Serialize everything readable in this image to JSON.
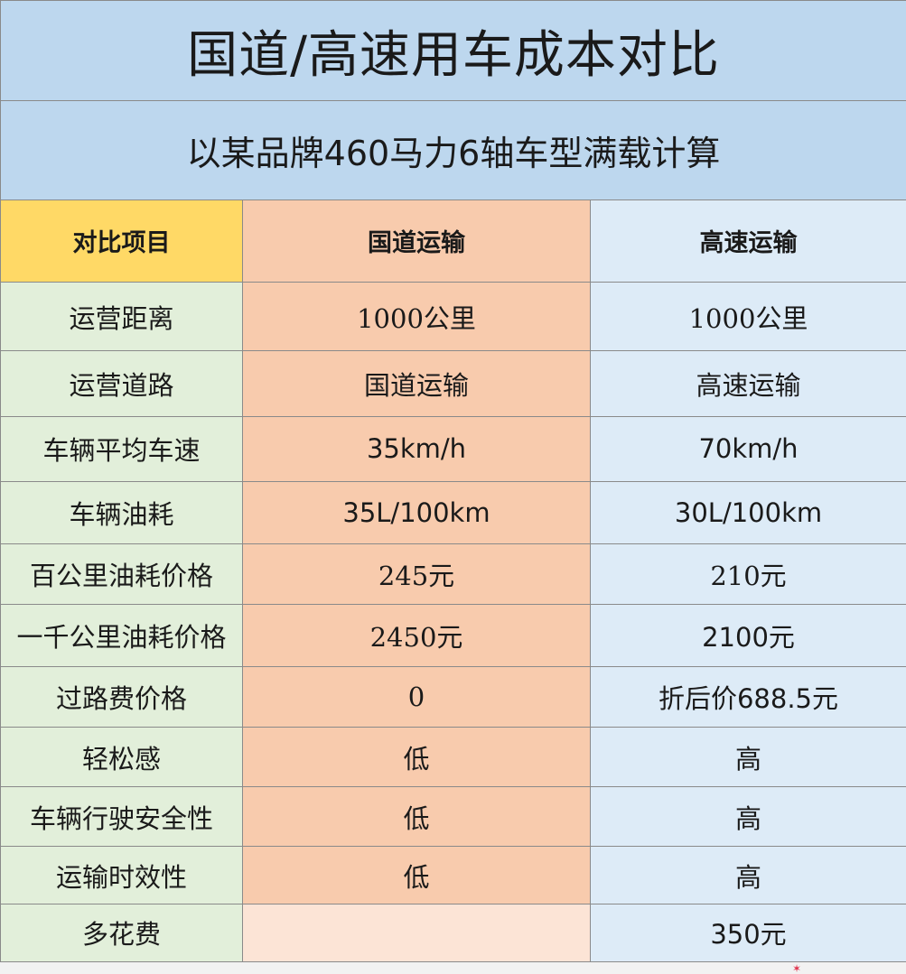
{
  "title": "国道/高速用车成本对比",
  "subtitle": "以某品牌460马力6轴车型满载计算",
  "headers": [
    "对比项目",
    "国道运输",
    "高速运输"
  ],
  "rows": [
    {
      "item": "运营距离",
      "national": "1000公里",
      "highway": "1000公里"
    },
    {
      "item": "运营道路",
      "national": "国道运输",
      "highway": "高速运输"
    },
    {
      "item": "车辆平均车速",
      "national": "35km/h",
      "highway": "70km/h"
    },
    {
      "item": "车辆油耗",
      "national": "35L/100km",
      "highway": "30L/100km"
    },
    {
      "item": "百公里油耗价格",
      "national": "245元",
      "highway": "210元"
    },
    {
      "item": "一千公里油耗价格",
      "national": "2450元",
      "highway": "2100元"
    },
    {
      "item": "过路费价格",
      "national": "0",
      "highway": "折后价688.5元"
    },
    {
      "item": "轻松感",
      "national": "低",
      "highway": "高"
    },
    {
      "item": "车辆行驶安全性",
      "national": "低",
      "highway": "高"
    },
    {
      "item": "运输时效性",
      "national": "低",
      "highway": "高"
    },
    {
      "item": "多花费",
      "national": "",
      "highway": "350元"
    }
  ],
  "colors": {
    "title_bg": "#bdd7ee",
    "header_item_bg": "#ffd966",
    "national_bg": "#f8cbad",
    "highway_bg": "#ddebf7",
    "item_bg": "#e2efda"
  }
}
